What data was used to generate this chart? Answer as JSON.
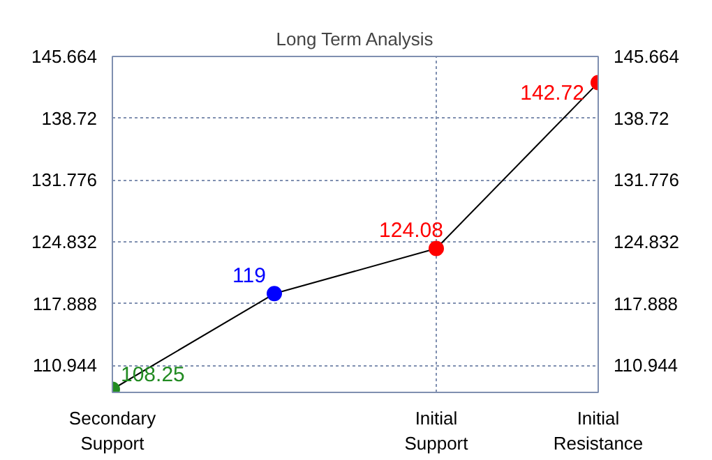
{
  "chart_data": {
    "type": "line",
    "title": "Long Term Analysis",
    "categories": [
      "Secondary Support",
      null,
      "Initial Support",
      "Initial Resistance"
    ],
    "series": [
      {
        "color": "#000000",
        "values": [
          108.25,
          119,
          124.08,
          142.72
        ]
      }
    ],
    "colors": [
      "#228b22",
      "#0000ff",
      "#ff0000",
      "#ff0000"
    ],
    "marker": "circle",
    "data_labels": true,
    "ylim": [
      107.9,
      145.664
    ],
    "yticks": [
      110.944,
      117.888,
      124.832,
      131.776,
      138.72,
      145.664
    ],
    "y2lim": [
      107.9,
      145.664
    ],
    "y2ticks": [
      110.944,
      117.888,
      124.832,
      131.776,
      138.72,
      145.664
    ],
    "grid": true
  }
}
